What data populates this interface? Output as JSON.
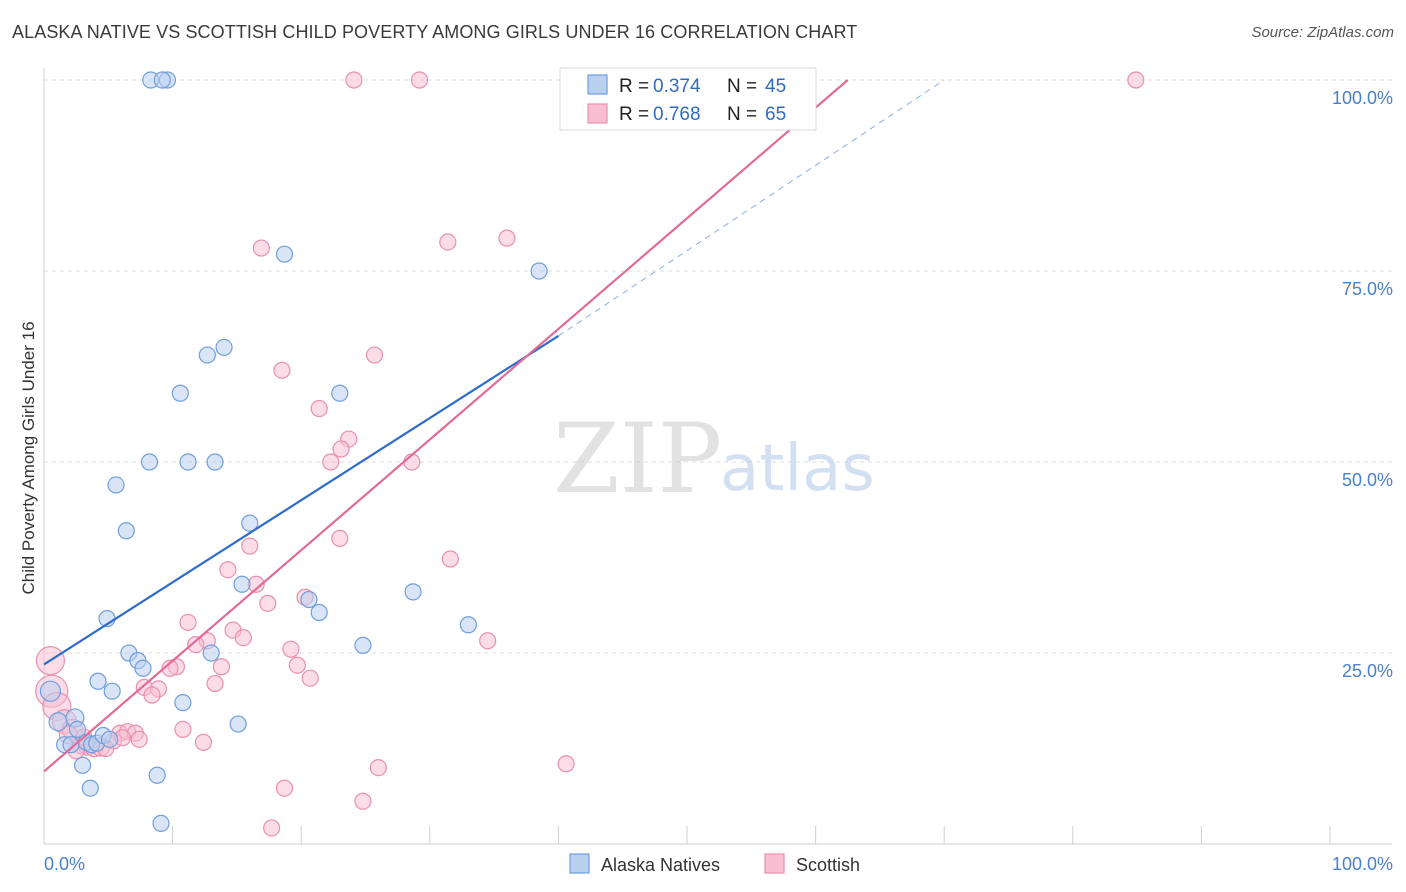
{
  "title": "ALASKA NATIVE VS SCOTTISH CHILD POVERTY AMONG GIRLS UNDER 16 CORRELATION CHART",
  "source": "Source: ZipAtlas.com",
  "watermark": {
    "zip": "ZIP",
    "atlas": "atlas"
  },
  "colors": {
    "blue_fill": "#b9d0f0",
    "blue_stroke": "#6f9fdc",
    "blue_line": "#2f6cc9",
    "pink_fill": "#f8bfd3",
    "pink_stroke": "#ea8fb0",
    "pink_line": "#e26a98",
    "grid": "#dcdcdc",
    "axis_text": "#4a7fc9"
  },
  "legend_top": {
    "series": [
      {
        "r_label": "R = ",
        "r_value": "0.374",
        "n_label": "N = ",
        "n_value": "45"
      },
      {
        "r_label": "R = ",
        "r_value": "0.768",
        "n_label": "N = ",
        "n_value": "65"
      }
    ]
  },
  "chart_data": {
    "type": "scatter",
    "title": "ALASKA NATIVE VS SCOTTISH CHILD POVERTY AMONG GIRLS UNDER 16 CORRELATION CHART",
    "xlabel": "",
    "ylabel": "Child Poverty Among Girls Under 16",
    "xlim": [
      0,
      100
    ],
    "ylim": [
      0,
      100
    ],
    "x_ticks": [
      "0.0%",
      "100.0%"
    ],
    "y_ticks": [
      {
        "value": 25,
        "label": "25.0%"
      },
      {
        "value": 50,
        "label": "50.0%"
      },
      {
        "value": 75,
        "label": "75.0%"
      },
      {
        "value": 100,
        "label": "100.0%"
      }
    ],
    "grid": true,
    "legend_position": "bottom",
    "series": [
      {
        "name": "Alaska Natives",
        "color": "#6f9fdc",
        "r": 0.374,
        "n": 45,
        "trend": {
          "x0": 0,
          "y0": 23.5,
          "x1": 40,
          "y1": 66.5
        },
        "trend_extension": {
          "x0": 40,
          "y0": 66.5,
          "x1": 70,
          "y1": 100
        },
        "points": [
          {
            "x": 8.3,
            "y": 100,
            "s": 8
          },
          {
            "x": 9.6,
            "y": 100,
            "s": 8
          },
          {
            "x": 9.2,
            "y": 100,
            "s": 8
          },
          {
            "x": 18.7,
            "y": 77.2,
            "s": 8
          },
          {
            "x": 38.5,
            "y": 75,
            "s": 8
          },
          {
            "x": 14.0,
            "y": 65,
            "s": 8
          },
          {
            "x": 12.7,
            "y": 64,
            "s": 8
          },
          {
            "x": 10.6,
            "y": 59,
            "s": 8
          },
          {
            "x": 23.0,
            "y": 59,
            "s": 8
          },
          {
            "x": 8.2,
            "y": 50,
            "s": 8
          },
          {
            "x": 11.2,
            "y": 50,
            "s": 8
          },
          {
            "x": 13.3,
            "y": 50,
            "s": 8
          },
          {
            "x": 5.6,
            "y": 47,
            "s": 8
          },
          {
            "x": 6.4,
            "y": 41,
            "s": 8
          },
          {
            "x": 16.0,
            "y": 42,
            "s": 8
          },
          {
            "x": 15.4,
            "y": 34,
            "s": 8
          },
          {
            "x": 20.6,
            "y": 32,
            "s": 8
          },
          {
            "x": 21.4,
            "y": 30.3,
            "s": 8
          },
          {
            "x": 28.7,
            "y": 33,
            "s": 8
          },
          {
            "x": 33.0,
            "y": 28.7,
            "s": 8
          },
          {
            "x": 4.9,
            "y": 29.5,
            "s": 8
          },
          {
            "x": 6.6,
            "y": 25,
            "s": 8
          },
          {
            "x": 7.3,
            "y": 24,
            "s": 8
          },
          {
            "x": 7.7,
            "y": 23,
            "s": 8
          },
          {
            "x": 13.0,
            "y": 25,
            "s": 8
          },
          {
            "x": 24.8,
            "y": 26,
            "s": 8
          },
          {
            "x": 4.2,
            "y": 21.3,
            "s": 8
          },
          {
            "x": 5.3,
            "y": 20,
            "s": 8
          },
          {
            "x": 10.8,
            "y": 18.5,
            "s": 8
          },
          {
            "x": 0.5,
            "y": 20,
            "s": 10
          },
          {
            "x": 1.1,
            "y": 16,
            "s": 9
          },
          {
            "x": 2.4,
            "y": 16.5,
            "s": 9
          },
          {
            "x": 2.6,
            "y": 15,
            "s": 8
          },
          {
            "x": 3.3,
            "y": 13.3,
            "s": 8
          },
          {
            "x": 1.6,
            "y": 13,
            "s": 8
          },
          {
            "x": 2.1,
            "y": 13,
            "s": 8
          },
          {
            "x": 3.7,
            "y": 13,
            "s": 8
          },
          {
            "x": 4.1,
            "y": 13.2,
            "s": 8
          },
          {
            "x": 4.6,
            "y": 14.2,
            "s": 8
          },
          {
            "x": 15.1,
            "y": 15.7,
            "s": 8
          },
          {
            "x": 3.0,
            "y": 10.3,
            "s": 8
          },
          {
            "x": 3.6,
            "y": 7.3,
            "s": 8
          },
          {
            "x": 8.8,
            "y": 9,
            "s": 8
          },
          {
            "x": 9.1,
            "y": 2.7,
            "s": 8
          },
          {
            "x": 5.1,
            "y": 13.7,
            "s": 8
          }
        ]
      },
      {
        "name": "Scottish",
        "color": "#ea8fb0",
        "r": 0.768,
        "n": 65,
        "trend": {
          "x0": 0,
          "y0": 9.5,
          "x1": 62.5,
          "y1": 100
        },
        "points": [
          {
            "x": 24.1,
            "y": 100,
            "s": 8
          },
          {
            "x": 29.2,
            "y": 100,
            "s": 8
          },
          {
            "x": 47.6,
            "y": 100,
            "s": 8
          },
          {
            "x": 48.5,
            "y": 100,
            "s": 8
          },
          {
            "x": 56.8,
            "y": 100,
            "s": 8
          },
          {
            "x": 84.9,
            "y": 100,
            "s": 8
          },
          {
            "x": 16.9,
            "y": 78,
            "s": 8
          },
          {
            "x": 31.4,
            "y": 78.8,
            "s": 8
          },
          {
            "x": 36.0,
            "y": 79.3,
            "s": 8
          },
          {
            "x": 25.7,
            "y": 64,
            "s": 8
          },
          {
            "x": 18.5,
            "y": 62,
            "s": 8
          },
          {
            "x": 21.4,
            "y": 57,
            "s": 8
          },
          {
            "x": 23.7,
            "y": 53,
            "s": 8
          },
          {
            "x": 23.1,
            "y": 51.7,
            "s": 8
          },
          {
            "x": 22.3,
            "y": 50,
            "s": 8
          },
          {
            "x": 28.6,
            "y": 50,
            "s": 8
          },
          {
            "x": 23.0,
            "y": 40,
            "s": 8
          },
          {
            "x": 16.0,
            "y": 39,
            "s": 8
          },
          {
            "x": 31.6,
            "y": 37.3,
            "s": 8
          },
          {
            "x": 14.3,
            "y": 35.9,
            "s": 8
          },
          {
            "x": 16.5,
            "y": 34,
            "s": 8
          },
          {
            "x": 20.3,
            "y": 32.3,
            "s": 8
          },
          {
            "x": 17.4,
            "y": 31.5,
            "s": 8
          },
          {
            "x": 11.2,
            "y": 29,
            "s": 8
          },
          {
            "x": 14.7,
            "y": 28,
            "s": 8
          },
          {
            "x": 15.5,
            "y": 27,
            "s": 8
          },
          {
            "x": 12.7,
            "y": 26.6,
            "s": 8
          },
          {
            "x": 11.8,
            "y": 26.1,
            "s": 8
          },
          {
            "x": 19.2,
            "y": 25.5,
            "s": 8
          },
          {
            "x": 34.5,
            "y": 26.6,
            "s": 8
          },
          {
            "x": 10.3,
            "y": 23.2,
            "s": 8
          },
          {
            "x": 9.8,
            "y": 23,
            "s": 8
          },
          {
            "x": 13.8,
            "y": 23.2,
            "s": 8
          },
          {
            "x": 19.7,
            "y": 23.4,
            "s": 8
          },
          {
            "x": 20.7,
            "y": 21.7,
            "s": 8
          },
          {
            "x": 13.3,
            "y": 21,
            "s": 8
          },
          {
            "x": 7.8,
            "y": 20.5,
            "s": 8
          },
          {
            "x": 8.9,
            "y": 20.3,
            "s": 8
          },
          {
            "x": 8.4,
            "y": 19.5,
            "s": 8
          },
          {
            "x": 0.5,
            "y": 24,
            "s": 14
          },
          {
            "x": 0.6,
            "y": 20,
            "s": 16
          },
          {
            "x": 1.0,
            "y": 18,
            "s": 14
          },
          {
            "x": 1.6,
            "y": 16,
            "s": 12
          },
          {
            "x": 2.2,
            "y": 15,
            "s": 10
          },
          {
            "x": 10.8,
            "y": 15,
            "s": 8
          },
          {
            "x": 5.9,
            "y": 14.5,
            "s": 8
          },
          {
            "x": 6.5,
            "y": 14.7,
            "s": 8
          },
          {
            "x": 7.1,
            "y": 14.5,
            "s": 8
          },
          {
            "x": 7.4,
            "y": 13.7,
            "s": 8
          },
          {
            "x": 5.4,
            "y": 13.5,
            "s": 8
          },
          {
            "x": 12.4,
            "y": 13.3,
            "s": 8
          },
          {
            "x": 2.9,
            "y": 13,
            "s": 9
          },
          {
            "x": 3.4,
            "y": 12.8,
            "s": 9
          },
          {
            "x": 3.9,
            "y": 12.6,
            "s": 9
          },
          {
            "x": 4.4,
            "y": 12.7,
            "s": 9
          },
          {
            "x": 2.5,
            "y": 12.2,
            "s": 8
          },
          {
            "x": 4.8,
            "y": 12.5,
            "s": 8
          },
          {
            "x": 26.0,
            "y": 10,
            "s": 8
          },
          {
            "x": 40.6,
            "y": 10.5,
            "s": 8
          },
          {
            "x": 18.7,
            "y": 7.3,
            "s": 8
          },
          {
            "x": 24.8,
            "y": 5.6,
            "s": 8
          },
          {
            "x": 17.7,
            "y": 2.1,
            "s": 8
          },
          {
            "x": 6.1,
            "y": 13.9,
            "s": 8
          },
          {
            "x": 1.9,
            "y": 14.3,
            "s": 9
          },
          {
            "x": 3.1,
            "y": 14.0,
            "s": 8
          }
        ]
      }
    ]
  }
}
